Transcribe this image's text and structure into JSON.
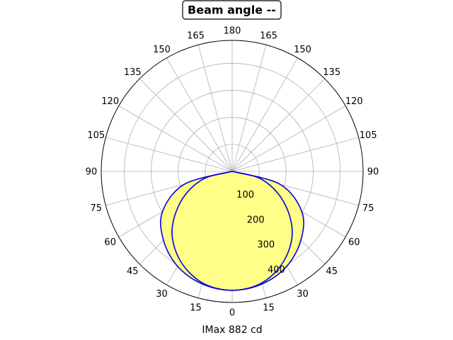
{
  "chart_data": {
    "type": "polar",
    "title": "Beam angle --",
    "xlabel": "IMax 882 cd",
    "angle_tick_labels": [
      "0",
      "15",
      "30",
      "45",
      "60",
      "75",
      "90",
      "105",
      "120",
      "135",
      "150",
      "165",
      "180",
      "165",
      "150",
      "135",
      "120",
      "105",
      "90",
      "75",
      "60",
      "45",
      "30",
      "15"
    ],
    "radial_tick_labels": [
      "100",
      "200",
      "300",
      "400"
    ],
    "radial_ticks": [
      100,
      200,
      300,
      400
    ],
    "rmax": 485,
    "grid": true,
    "fill_color": "#ffff88",
    "line_color": "#0000dd",
    "series": [
      {
        "angles": [
          0,
          15,
          30,
          45,
          60,
          75,
          90
        ],
        "values": [
          440,
          427,
          383,
          315,
          218,
          113,
          0
        ]
      },
      {
        "angles": [
          0,
          15,
          30,
          45,
          60,
          75,
          90
        ],
        "values": [
          440,
          431,
          405,
          360,
          298,
          183,
          0
        ]
      }
    ]
  }
}
